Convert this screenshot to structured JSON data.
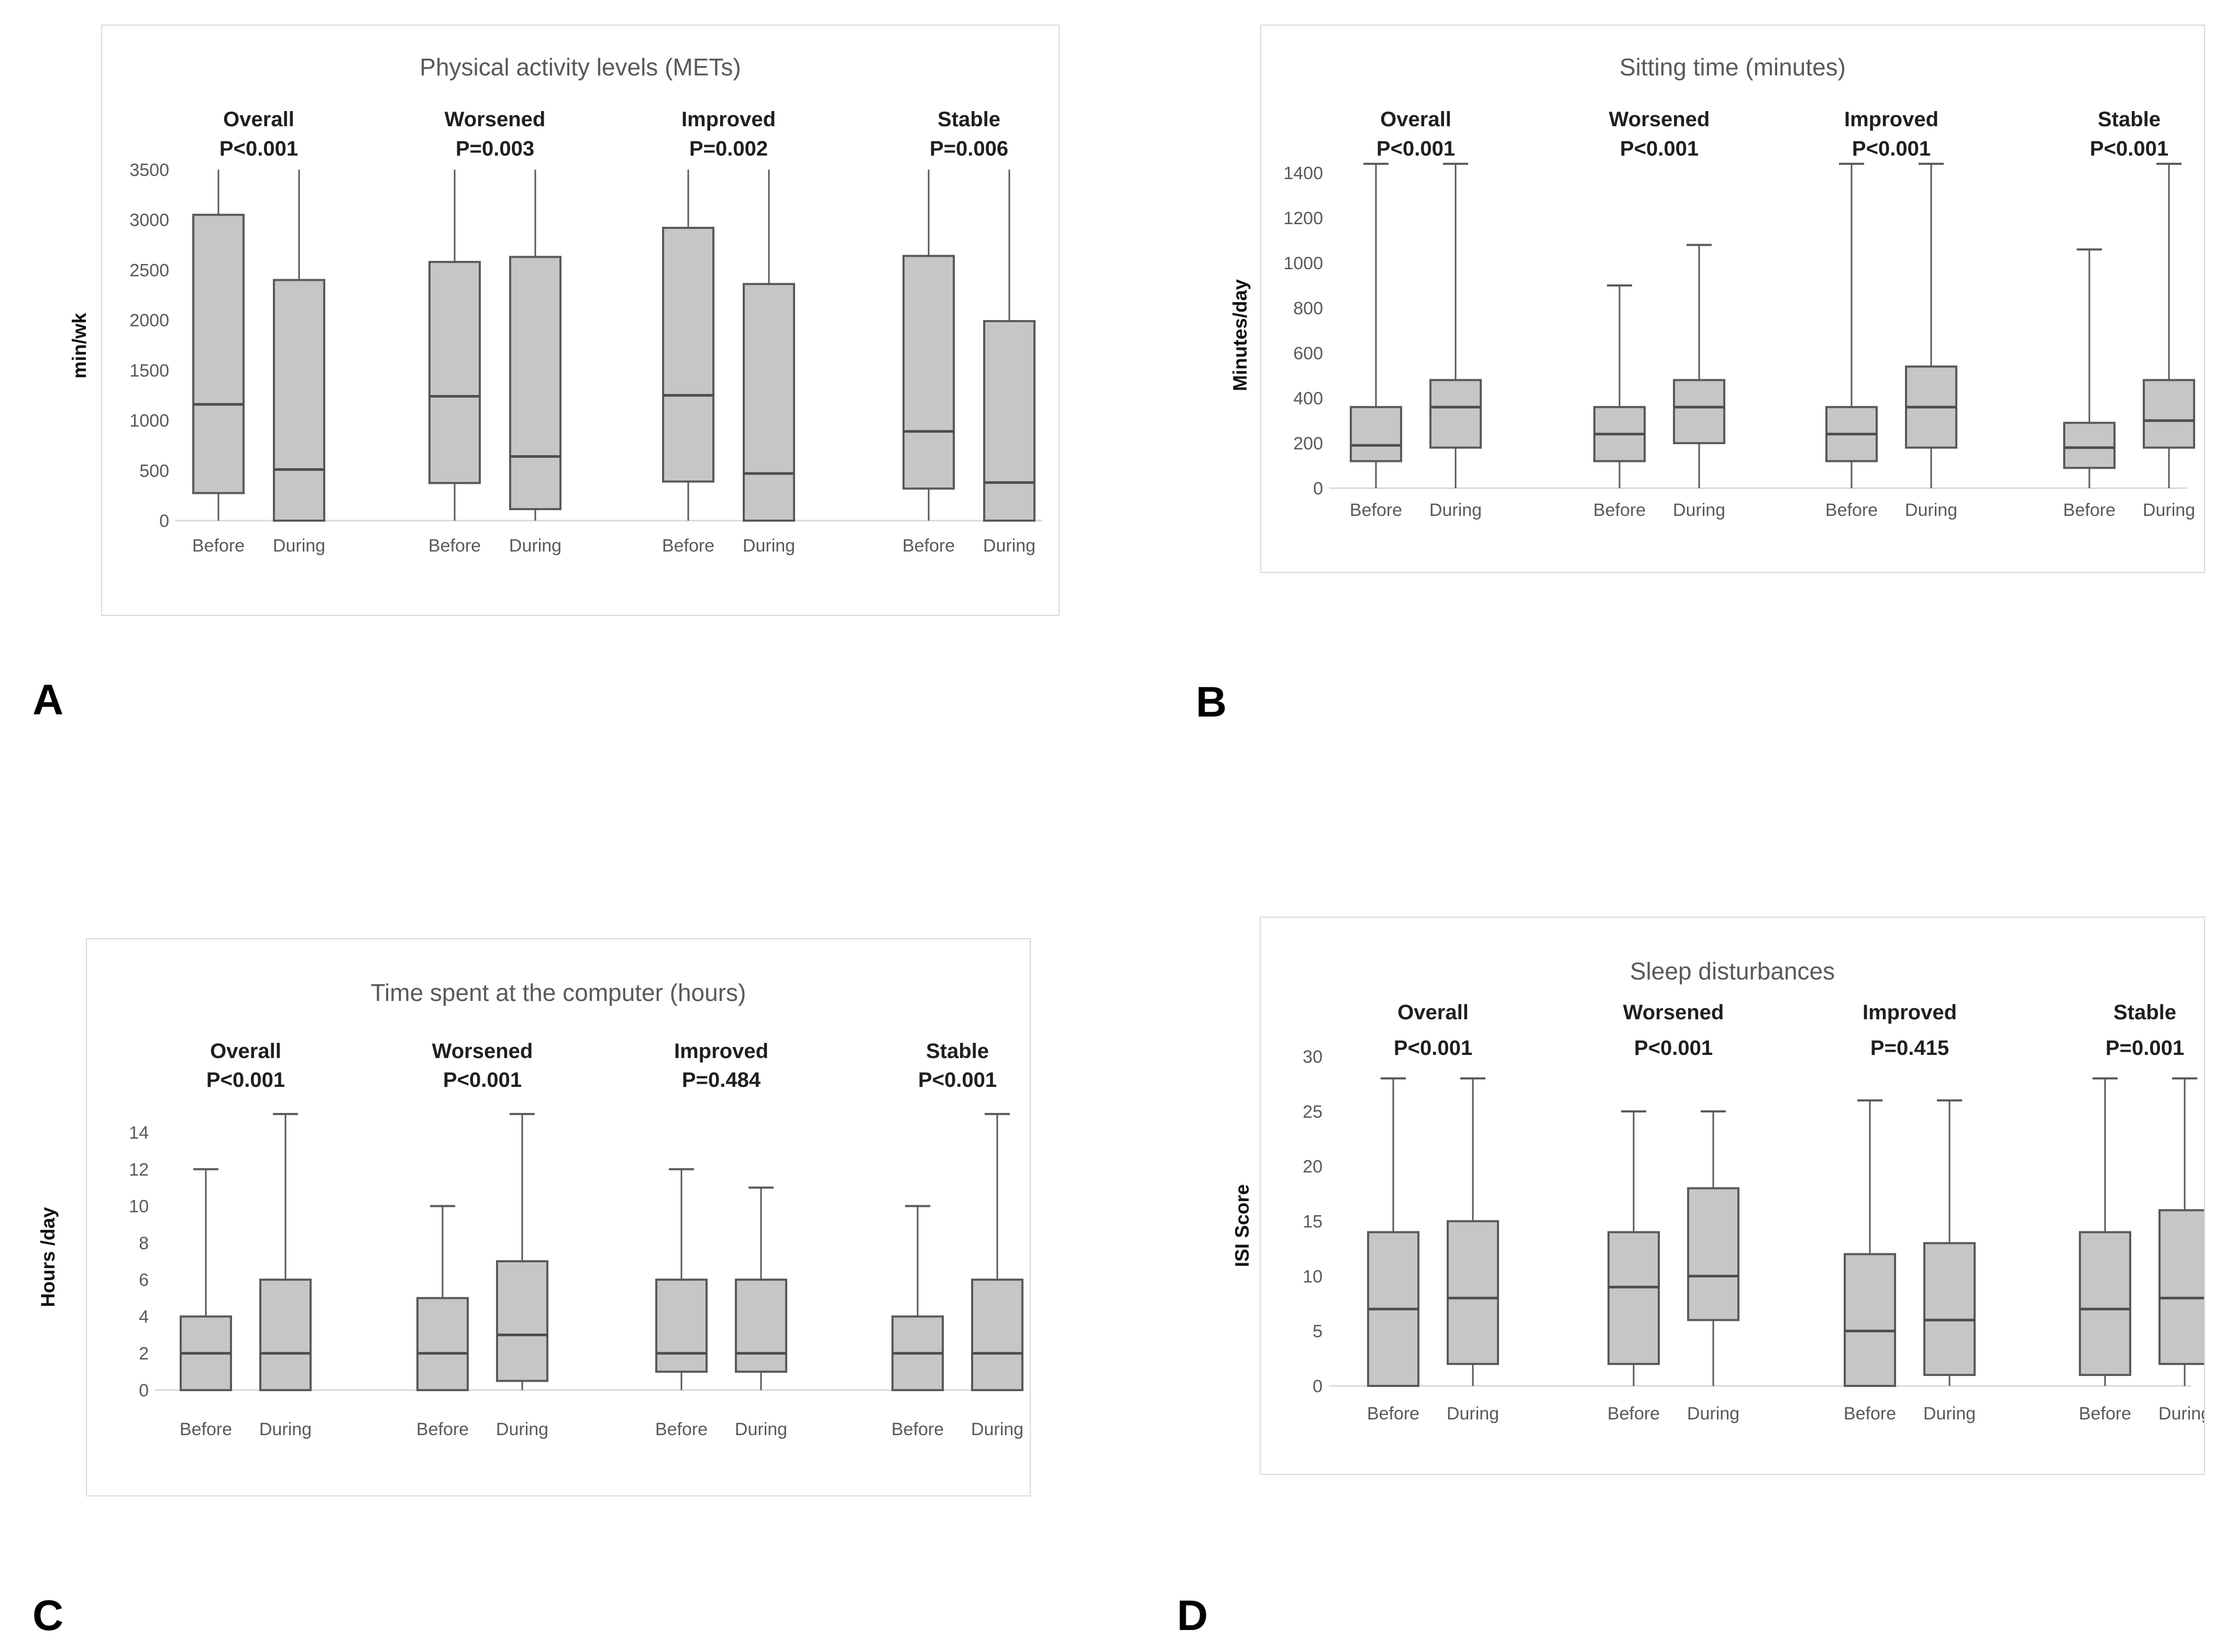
{
  "chart_data": [
    {
      "type": "boxplot",
      "panel": "A",
      "title": "Physical activity levels (METs)",
      "ylabel": "min/wk",
      "ylim": [
        0,
        3500
      ],
      "ytick_step": 500,
      "x_labels": [
        "Before",
        "During"
      ],
      "grid": false,
      "groups": [
        {
          "name": "Overall",
          "p": "P<0.001",
          "before": {
            "whislo": 0,
            "q1": 275,
            "med": 1160,
            "q3": 3050,
            "whishi": 3500
          },
          "during": {
            "whislo": 0,
            "q1": 0,
            "med": 510,
            "q3": 2400,
            "whishi": 3500
          }
        },
        {
          "name": "Worsened",
          "p": "P=0.003",
          "before": {
            "whislo": 0,
            "q1": 375,
            "med": 1240,
            "q3": 2580,
            "whishi": 3500
          },
          "during": {
            "whislo": 0,
            "q1": 115,
            "med": 640,
            "q3": 2630,
            "whishi": 3500
          }
        },
        {
          "name": "Improved",
          "p": "P=0.002",
          "before": {
            "whislo": 0,
            "q1": 390,
            "med": 1250,
            "q3": 2920,
            "whishi": 3500
          },
          "during": {
            "whislo": 0,
            "q1": 0,
            "med": 470,
            "q3": 2360,
            "whishi": 3500
          }
        },
        {
          "name": "Stable",
          "p": "P=0.006",
          "before": {
            "whislo": 0,
            "q1": 320,
            "med": 890,
            "q3": 2640,
            "whishi": 3500
          },
          "during": {
            "whislo": 0,
            "q1": 0,
            "med": 380,
            "q3": 1990,
            "whishi": 3500
          }
        }
      ]
    },
    {
      "type": "boxplot",
      "panel": "B",
      "title": "Sitting time (minutes)",
      "ylabel": "Minutes/day",
      "ylim": [
        0,
        1400
      ],
      "ytick_step": 200,
      "x_labels": [
        "Before",
        "During"
      ],
      "grid": false,
      "groups": [
        {
          "name": "Overall",
          "p": "P<0.001",
          "before": {
            "whislo": 0,
            "q1": 120,
            "med": 190,
            "q3": 360,
            "whishi": 1440
          },
          "during": {
            "whislo": 0,
            "q1": 180,
            "med": 360,
            "q3": 480,
            "whishi": 1440
          }
        },
        {
          "name": "Worsened",
          "p": "P<0.001",
          "before": {
            "whislo": 0,
            "q1": 120,
            "med": 240,
            "q3": 360,
            "whishi": 900
          },
          "during": {
            "whislo": 0,
            "q1": 200,
            "med": 360,
            "q3": 480,
            "whishi": 1080
          }
        },
        {
          "name": "Improved",
          "p": "P<0.001",
          "before": {
            "whislo": 0,
            "q1": 120,
            "med": 240,
            "q3": 360,
            "whishi": 1440
          },
          "during": {
            "whislo": 0,
            "q1": 180,
            "med": 360,
            "q3": 540,
            "whishi": 1440
          }
        },
        {
          "name": "Stable",
          "p": "P<0.001",
          "before": {
            "whislo": 0,
            "q1": 90,
            "med": 180,
            "q3": 290,
            "whishi": 1060
          },
          "during": {
            "whislo": 0,
            "q1": 180,
            "med": 300,
            "q3": 480,
            "whishi": 1440
          }
        }
      ]
    },
    {
      "type": "boxplot",
      "panel": "C",
      "title": "Time spent at the computer (hours)",
      "ylabel": "Hours /day",
      "ylim": [
        0,
        14
      ],
      "ytick_step": 2,
      "x_labels": [
        "Before",
        "During"
      ],
      "grid": false,
      "groups": [
        {
          "name": "Overall",
          "p": "P<0.001",
          "before": {
            "whislo": 0,
            "q1": 0,
            "med": 2,
            "q3": 4,
            "whishi": 12
          },
          "during": {
            "whislo": 0,
            "q1": 0,
            "med": 2,
            "q3": 6,
            "whishi": 15
          }
        },
        {
          "name": "Worsened",
          "p": "P<0.001",
          "before": {
            "whislo": 0,
            "q1": 0,
            "med": 2,
            "q3": 5,
            "whishi": 10
          },
          "during": {
            "whislo": 0,
            "q1": 0.5,
            "med": 3,
            "q3": 7,
            "whishi": 15
          }
        },
        {
          "name": "Improved",
          "p": "P=0.484",
          "before": {
            "whislo": 0,
            "q1": 1,
            "med": 2,
            "q3": 6,
            "whishi": 12
          },
          "during": {
            "whislo": 0,
            "q1": 1,
            "med": 2,
            "q3": 6,
            "whishi": 11
          }
        },
        {
          "name": "Stable",
          "p": "P<0.001",
          "before": {
            "whislo": 0,
            "q1": 0,
            "med": 2,
            "q3": 4,
            "whishi": 10
          },
          "during": {
            "whislo": 0,
            "q1": 0,
            "med": 2,
            "q3": 6,
            "whishi": 15
          }
        }
      ]
    },
    {
      "type": "boxplot",
      "panel": "D",
      "title": "Sleep disturbances",
      "ylabel": "ISI Score",
      "ylim": [
        0,
        30
      ],
      "ytick_step": 5,
      "x_labels": [
        "Before",
        "During"
      ],
      "grid": false,
      "groups": [
        {
          "name": "Overall",
          "p": "P<0.001",
          "before": {
            "whislo": 0,
            "q1": 0,
            "med": 7,
            "q3": 14,
            "whishi": 28
          },
          "during": {
            "whislo": 0,
            "q1": 2,
            "med": 8,
            "q3": 15,
            "whishi": 28
          }
        },
        {
          "name": "Worsened",
          "p": "P<0.001",
          "before": {
            "whislo": 0,
            "q1": 2,
            "med": 9,
            "q3": 14,
            "whishi": 25
          },
          "during": {
            "whislo": 0,
            "q1": 6,
            "med": 10,
            "q3": 18,
            "whishi": 25
          }
        },
        {
          "name": "Improved",
          "p": "P=0.415",
          "before": {
            "whislo": 0,
            "q1": 0,
            "med": 5,
            "q3": 12,
            "whishi": 26
          },
          "during": {
            "whislo": 0,
            "q1": 1,
            "med": 6,
            "q3": 13,
            "whishi": 26
          }
        },
        {
          "name": "Stable",
          "p": "P=0.001",
          "before": {
            "whislo": 0,
            "q1": 1,
            "med": 7,
            "q3": 14,
            "whishi": 28
          },
          "during": {
            "whislo": 0,
            "q1": 2,
            "med": 8,
            "q3": 16,
            "whishi": 28
          }
        }
      ]
    }
  ],
  "colors": {
    "box_fill": "#c6c6c6",
    "box_stroke": "#595959",
    "whisker": "#595959",
    "median": "#4d4d4d",
    "baseline": "#d9d9d9",
    "title_text": "#595959",
    "header_text": "#1f1f1f",
    "tick_text": "#595959",
    "category_text": "#595959"
  }
}
